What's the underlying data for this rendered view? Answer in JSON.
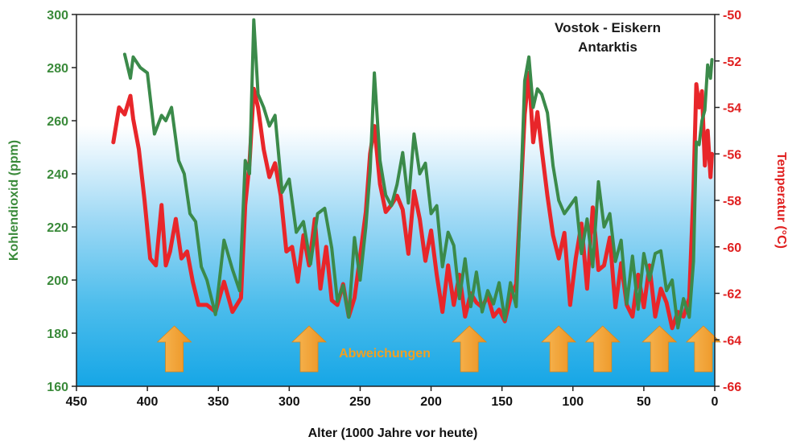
{
  "chart_data": {
    "type": "line",
    "title": "Vostok - Eiskern",
    "subtitle": "Antarktis",
    "xlabel": "Alter (1000 Jahre vor heute)",
    "ylabel_left": "Kohlendioxid (ppm)",
    "ylabel_right": "Temperatur (°C)",
    "xlim": [
      450,
      0
    ],
    "ylim_left": [
      160,
      300
    ],
    "ylim_right": [
      -66,
      -50
    ],
    "x_ticks": [
      450,
      400,
      350,
      300,
      250,
      200,
      150,
      100,
      50,
      0
    ],
    "y_left_ticks": [
      160,
      180,
      200,
      220,
      240,
      260,
      280,
      300
    ],
    "y_right_ticks": [
      -66,
      -64,
      -62,
      -60,
      -58,
      -56,
      -54,
      -52,
      -50
    ],
    "annotation": "Abweichungen",
    "arrow_x": [
      381,
      286,
      173,
      110,
      79,
      39,
      8
    ],
    "colors": {
      "co2": "#3b8a4a",
      "temp": "#e8262a",
      "arrow": "#f5a53a",
      "bg_top": "#ffffff",
      "bg_bottom": "#1aa8e8"
    },
    "series": [
      {
        "name": "Kohlendioxid (ppm)",
        "axis": "left",
        "color": "#3b8a4a",
        "x": [
          416,
          412,
          410,
          405,
          400,
          395,
          390,
          387,
          383,
          378,
          374,
          370,
          366,
          362,
          358,
          352,
          346,
          340,
          335,
          331,
          328,
          325,
          322,
          318,
          314,
          310,
          305,
          300,
          295,
          290,
          285,
          280,
          275,
          270,
          266,
          262,
          258,
          254,
          250,
          246,
          243,
          240,
          236,
          232,
          228,
          224,
          220,
          216,
          212,
          208,
          204,
          200,
          196,
          192,
          188,
          184,
          180,
          176,
          172,
          168,
          164,
          160,
          156,
          152,
          148,
          144,
          140,
          137,
          134,
          131,
          128,
          125,
          122,
          118,
          114,
          110,
          106,
          102,
          98,
          94,
          90,
          86,
          82,
          78,
          74,
          70,
          66,
          62,
          58,
          54,
          50,
          46,
          42,
          38,
          34,
          30,
          26,
          22,
          18,
          15,
          13,
          11,
          9,
          7,
          5,
          3,
          2
        ],
        "values": [
          285,
          276,
          284,
          280,
          278,
          255,
          262,
          260,
          265,
          245,
          240,
          225,
          222,
          205,
          200,
          187,
          215,
          204,
          196,
          245,
          240,
          298,
          270,
          265,
          258,
          262,
          233,
          238,
          218,
          222,
          206,
          225,
          227,
          212,
          192,
          198,
          186,
          216,
          200,
          220,
          241,
          278,
          245,
          232,
          228,
          236,
          248,
          229,
          255,
          240,
          244,
          225,
          228,
          205,
          218,
          213,
          193,
          208,
          190,
          203,
          188,
          196,
          191,
          199,
          185,
          199,
          190,
          230,
          275,
          284,
          265,
          272,
          270,
          263,
          243,
          230,
          225,
          228,
          231,
          210,
          223,
          205,
          237,
          220,
          225,
          207,
          215,
          191,
          209,
          189,
          210,
          200,
          210,
          211,
          196,
          200,
          182,
          193,
          186,
          207,
          252,
          251,
          260,
          264,
          281,
          276,
          283
        ]
      },
      {
        "name": "Temperatur (°C)",
        "axis": "right",
        "color": "#e8262a",
        "x": [
          424,
          420,
          416,
          412,
          410,
          406,
          402,
          398,
          394,
          390,
          387,
          384,
          380,
          376,
          372,
          368,
          364,
          358,
          352,
          346,
          340,
          334,
          331,
          328,
          325,
          322,
          318,
          314,
          310,
          306,
          302,
          298,
          294,
          290,
          286,
          282,
          278,
          274,
          270,
          266,
          262,
          258,
          254,
          250,
          246,
          243,
          240,
          236,
          232,
          228,
          224,
          220,
          216,
          212,
          208,
          204,
          200,
          196,
          192,
          188,
          184,
          180,
          176,
          172,
          168,
          164,
          160,
          156,
          152,
          148,
          144,
          140,
          137,
          134,
          131,
          128,
          125,
          122,
          118,
          114,
          110,
          106,
          102,
          98,
          94,
          90,
          86,
          82,
          78,
          74,
          70,
          66,
          62,
          58,
          54,
          50,
          46,
          42,
          38,
          34,
          30,
          26,
          22,
          18,
          15,
          13,
          11,
          9,
          7,
          5,
          3,
          2
        ],
        "values": [
          -55.5,
          -54,
          -54.3,
          -53.5,
          -54.5,
          -55.8,
          -58,
          -60.5,
          -60.8,
          -58.2,
          -60.8,
          -60.2,
          -58.8,
          -60.5,
          -60.2,
          -61.5,
          -62.5,
          -62.5,
          -62.8,
          -61.5,
          -62.8,
          -62.2,
          -58.2,
          -56.4,
          -53.2,
          -54,
          -55.8,
          -57,
          -56.4,
          -57.8,
          -60.2,
          -60,
          -61.5,
          -59.5,
          -60.8,
          -58.8,
          -61.8,
          -60,
          -62.3,
          -62.5,
          -61.6,
          -63,
          -62.2,
          -60.4,
          -58.5,
          -56,
          -54.8,
          -57.3,
          -58.5,
          -58.2,
          -57.8,
          -58.4,
          -60.3,
          -57.6,
          -58.8,
          -60.6,
          -59.3,
          -61.2,
          -62.8,
          -60.8,
          -62.5,
          -61.2,
          -63,
          -62,
          -62.4,
          -62.6,
          -62.1,
          -63,
          -62.7,
          -63.2,
          -62.2,
          -61.6,
          -58,
          -54.3,
          -52.5,
          -55.5,
          -54.2,
          -55.8,
          -57.8,
          -59.5,
          -60.5,
          -59.4,
          -62.5,
          -60.5,
          -59,
          -61.8,
          -58.3,
          -61,
          -60.8,
          -59.6,
          -62.6,
          -60.7,
          -62.5,
          -63,
          -61.2,
          -62.6,
          -60.8,
          -63,
          -61.8,
          -62.4,
          -63.5,
          -62.8,
          -63,
          -62.2,
          -57.5,
          -53,
          -54,
          -53.3,
          -56.5,
          -55,
          -57,
          -56
        ]
      }
    ]
  }
}
